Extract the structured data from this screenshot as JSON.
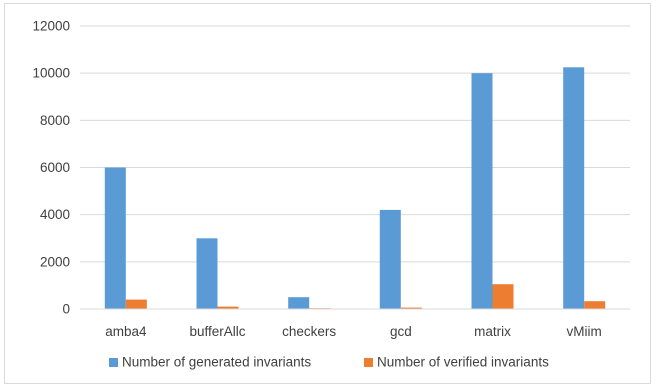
{
  "chart_data": {
    "type": "bar",
    "categories": [
      "amba4",
      "bufferAllc",
      "checkers",
      "gcd",
      "matrix",
      "vMiim"
    ],
    "series": [
      {
        "name": "Number of generated invariants",
        "color": "#5b9bd5",
        "values": [
          6000,
          3000,
          500,
          4200,
          10000,
          10250
        ]
      },
      {
        "name": "Number of verified invariants",
        "color": "#ed7d31",
        "values": [
          400,
          100,
          10,
          60,
          1050,
          330
        ]
      }
    ],
    "yticks": [
      "0",
      "2000",
      "4000",
      "6000",
      "8000",
      "10000",
      "12000"
    ],
    "ylim": [
      0,
      12000
    ],
    "title": "",
    "xlabel": "",
    "ylabel": "",
    "grid": true,
    "legend_position": "bottom"
  }
}
